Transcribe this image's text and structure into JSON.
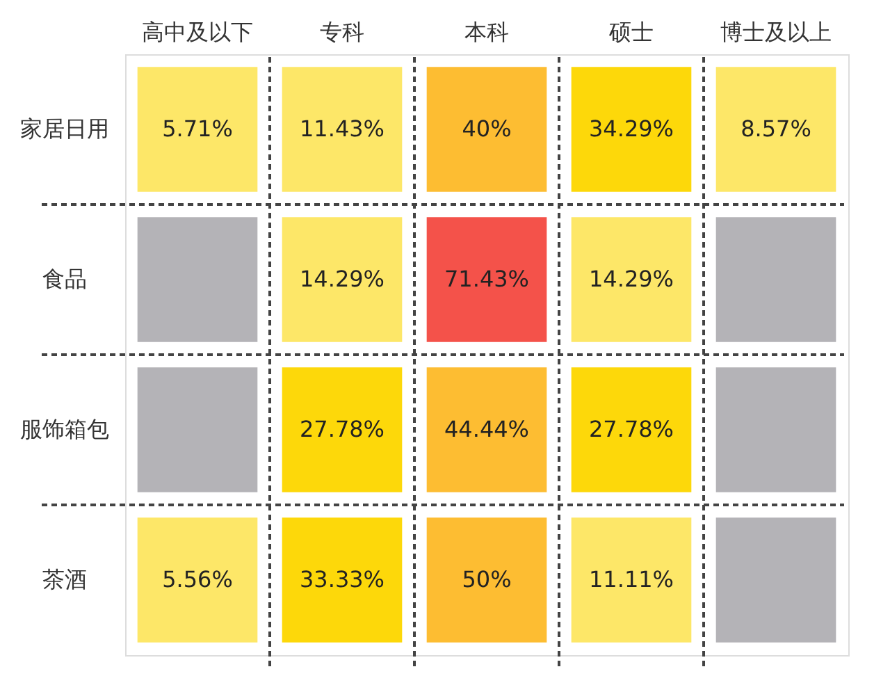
{
  "chart_data": {
    "type": "heatmap",
    "categories": [
      "高中及以下",
      "专科",
      "本科",
      "硕士",
      "博士及以上"
    ],
    "y_categories": [
      "家居日用",
      "食品",
      "服饰箱包",
      "茶酒"
    ],
    "cells": [
      [
        5.71,
        11.43,
        40,
        34.29,
        8.57
      ],
      [
        null,
        14.29,
        71.43,
        14.29,
        null
      ],
      [
        null,
        27.78,
        44.44,
        27.78,
        null
      ],
      [
        5.56,
        33.33,
        50,
        11.11,
        null
      ]
    ],
    "cell_labels": [
      [
        "5.71%",
        "11.43%",
        "40%",
        "34.29%",
        "8.57%"
      ],
      [
        null,
        "14.29%",
        "71.43%",
        "14.29%",
        null
      ],
      [
        null,
        "27.78%",
        "44.44%",
        "27.78%",
        null
      ],
      [
        "5.56%",
        "33.33%",
        "50%",
        "11.11%",
        null
      ]
    ],
    "grid": true
  }
}
